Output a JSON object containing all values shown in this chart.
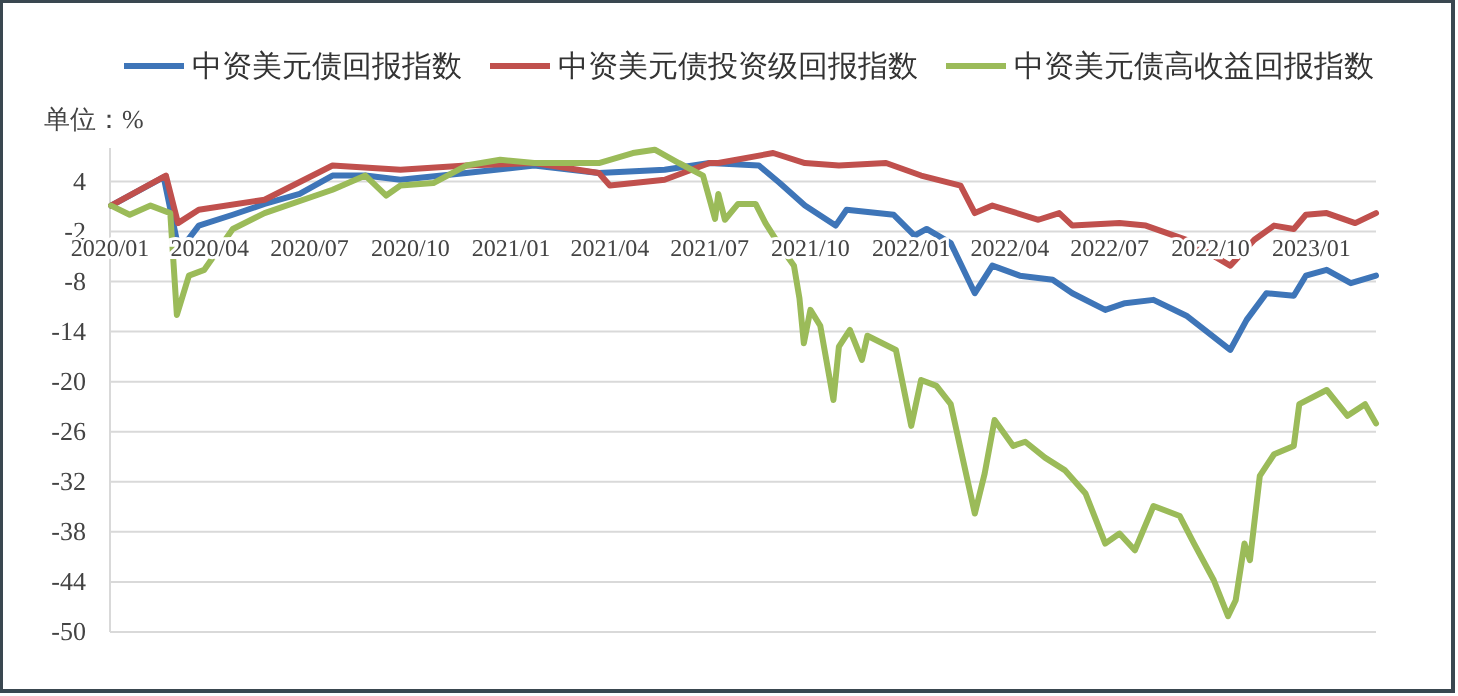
{
  "chart_data": {
    "type": "line",
    "ylabel": "单位：%",
    "legend": "top",
    "grid": "y",
    "line_style": "solid",
    "marker": "none",
    "xlim": [
      "2020-01-01",
      "2023-03-01"
    ],
    "ylim": [
      -50,
      8
    ],
    "xticks": [
      {
        "value": "2020-01",
        "label": "2020/01"
      },
      {
        "value": "2020-04",
        "label": "2020/04"
      },
      {
        "value": "2020-07",
        "label": "2020/07"
      },
      {
        "value": "2020-10",
        "label": "2020/10"
      },
      {
        "value": "2021-01",
        "label": "2021/01"
      },
      {
        "value": "2021-04",
        "label": "2021/04"
      },
      {
        "value": "2021-07",
        "label": "2021/07"
      },
      {
        "value": "2021-10",
        "label": "2021/10"
      },
      {
        "value": "2022-01",
        "label": "2022/01"
      },
      {
        "value": "2022-04",
        "label": "2022/04"
      },
      {
        "value": "2022-07",
        "label": "2022/07"
      },
      {
        "value": "2022-10",
        "label": "2022/10"
      },
      {
        "value": "2023-01",
        "label": "2023/01"
      }
    ],
    "yticks": [
      4,
      -2,
      -8,
      -14,
      -20,
      -26,
      -32,
      -38,
      -44,
      -50
    ],
    "series": [
      {
        "name": "中资美元债回报指数",
        "color": "#3e75b8",
        "x": [
          "2020-01-02",
          "2020-02-19",
          "2020-03-04",
          "2020-03-22",
          "2020-04-22",
          "2020-05-21",
          "2020-06-22",
          "2020-07-22",
          "2020-08-21",
          "2020-09-22",
          "2020-11-21",
          "2021-01-22",
          "2021-03-22",
          "2021-05-21",
          "2021-07-01",
          "2021-08-15",
          "2021-09-03",
          "2021-09-26",
          "2021-10-24",
          "2021-11-03",
          "2021-12-16",
          "2022-01-04",
          "2022-01-15",
          "2022-02-06",
          "2022-02-28",
          "2022-03-16",
          "2022-04-10",
          "2022-05-10",
          "2022-05-28",
          "2022-06-27",
          "2022-07-15",
          "2022-08-10",
          "2022-09-09",
          "2022-10-19",
          "2022-11-03",
          "2022-11-21",
          "2022-12-16",
          "2022-12-27",
          "2023-01-15",
          "2023-02-06",
          "2023-03-01"
        ],
        "values": [
          1.1,
          4.5,
          -4.4,
          -1.3,
          0,
          1.3,
          2.5,
          4.7,
          4.7,
          4.2,
          5,
          5.9,
          5,
          5.4,
          6.2,
          5.9,
          3.8,
          1.1,
          -1.3,
          0.6,
          0,
          -2.5,
          -1.7,
          -3.4,
          -9.4,
          -6.1,
          -7.3,
          -7.8,
          -9.4,
          -11.4,
          -10.6,
          -10.2,
          -12.1,
          -16.2,
          -12.6,
          -9.4,
          -9.7,
          -7.3,
          -6.6,
          -8.2,
          -7.3
        ]
      },
      {
        "name": "中资美元债投资级回报指数",
        "color": "#c0504d",
        "x": [
          "2020-01-02",
          "2020-02-21",
          "2020-03-03",
          "2020-03-22",
          "2020-05-21",
          "2020-07-22",
          "2020-09-22",
          "2020-11-21",
          "2021-01-22",
          "2021-03-22",
          "2021-04-01",
          "2021-05-21",
          "2021-07-01",
          "2021-07-09",
          "2021-08-28",
          "2021-09-26",
          "2021-10-27",
          "2021-12-09",
          "2022-01-10",
          "2022-02-15",
          "2022-02-28",
          "2022-03-16",
          "2022-04-27",
          "2022-05-16",
          "2022-05-28",
          "2022-07-10",
          "2022-08-03",
          "2022-09-09",
          "2022-10-19",
          "2022-11-10",
          "2022-11-28",
          "2022-12-16",
          "2022-12-27",
          "2023-01-15",
          "2023-02-10",
          "2023-03-01"
        ],
        "values": [
          1.1,
          4.7,
          -1,
          0.6,
          1.8,
          5.9,
          5.4,
          5.9,
          6.2,
          5,
          3.5,
          4.2,
          6.2,
          6.2,
          7.4,
          6.2,
          5.9,
          6.2,
          4.7,
          3.5,
          0.2,
          1.1,
          -0.6,
          0.2,
          -1.3,
          -1,
          -1.3,
          -3,
          -6.1,
          -3,
          -1.3,
          -1.7,
          0,
          0.2,
          -1,
          0.2
        ]
      },
      {
        "name": "中资美元债高收益回报指数",
        "color": "#9bbb59",
        "x": [
          "2020-01-02",
          "2020-01-19",
          "2020-02-07",
          "2020-02-25",
          "2020-03-02",
          "2020-03-13",
          "2020-03-27",
          "2020-04-22",
          "2020-05-21",
          "2020-07-22",
          "2020-08-21",
          "2020-09-09",
          "2020-09-22",
          "2020-10-22",
          "2020-11-21",
          "2020-12-22",
          "2021-01-22",
          "2021-02-20",
          "2021-03-22",
          "2021-04-22",
          "2021-05-12",
          "2021-06-03",
          "2021-06-25",
          "2021-07-06",
          "2021-07-09",
          "2021-07-15",
          "2021-07-27",
          "2021-08-12",
          "2021-08-21",
          "2021-09-03",
          "2021-09-16",
          "2021-09-21",
          "2021-09-25",
          "2021-10-01",
          "2021-10-10",
          "2021-10-22",
          "2021-10-27",
          "2021-11-06",
          "2021-11-17",
          "2021-11-22",
          "2021-12-18",
          "2022-01-01",
          "2022-01-10",
          "2022-01-24",
          "2022-02-06",
          "2022-02-28",
          "2022-03-09",
          "2022-03-18",
          "2022-04-04",
          "2022-04-15",
          "2022-05-03",
          "2022-05-21",
          "2022-06-09",
          "2022-06-27",
          "2022-07-10",
          "2022-07-24",
          "2022-08-10",
          "2022-09-03",
          "2022-09-16",
          "2022-10-04",
          "2022-10-17",
          "2022-10-24",
          "2022-11-01",
          "2022-11-06",
          "2022-11-15",
          "2022-11-28",
          "2022-12-16",
          "2022-12-21",
          "2023-01-15",
          "2023-02-03",
          "2023-02-19",
          "2023-03-01"
        ],
        "values": [
          1.1,
          0,
          1.1,
          0.2,
          -12,
          -7.3,
          -6.6,
          -1.7,
          0.2,
          3,
          4.7,
          2.3,
          3.5,
          3.8,
          5.9,
          6.6,
          6.2,
          6.2,
          6.2,
          7.4,
          7.8,
          6.2,
          4.7,
          -0.5,
          2.5,
          -0.6,
          1.3,
          1.3,
          -1,
          -3.7,
          -6.1,
          -10,
          -15.4,
          -11.4,
          -13.3,
          -22.2,
          -15.8,
          -13.8,
          -17.4,
          -14.5,
          -16.2,
          -25.3,
          -19.8,
          -20.5,
          -22.7,
          -35.8,
          -31,
          -24.6,
          -27.7,
          -27.2,
          -29.1,
          -30.6,
          -33.4,
          -39.4,
          -38.2,
          -40.2,
          -34.9,
          -36.1,
          -39.4,
          -43.8,
          -48.1,
          -46.2,
          -39.4,
          -41.4,
          -31.3,
          -28.7,
          -27.7,
          -22.7,
          -21,
          -24.1,
          -22.7,
          -25
        ]
      }
    ]
  }
}
